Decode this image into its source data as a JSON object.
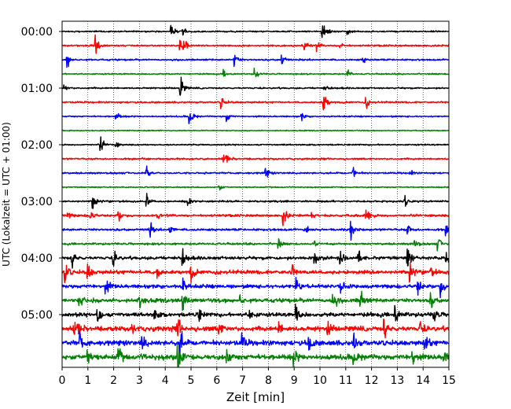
{
  "chart_data": {
    "type": "line",
    "xlabel": "Zeit  [min]",
    "ylabel": "UTC (Lokalzeit = UTC + 01:00)",
    "xlim": [
      0,
      15
    ],
    "x_ticks": [
      "0",
      "1",
      "2",
      "3",
      "4",
      "5",
      "6",
      "7",
      "8",
      "9",
      "10",
      "11",
      "12",
      "13",
      "14",
      "15"
    ],
    "y_ticks": [
      "00:00",
      "01:00",
      "02:00",
      "03:00",
      "04:00",
      "05:00"
    ],
    "grid": "vertical dotted",
    "colors": [
      "#000000",
      "#ff0000",
      "#0000ff",
      "#008000"
    ],
    "rows": [
      {
        "amp": 1.0,
        "events": [
          [
            4.25,
            10
          ],
          [
            4.7,
            6
          ],
          [
            10.1,
            12
          ],
          [
            10.3,
            5
          ],
          [
            11.1,
            8
          ]
        ]
      },
      {
        "amp": 1.2,
        "events": [
          [
            1.3,
            12
          ],
          [
            4.6,
            14
          ],
          [
            4.75,
            8
          ],
          [
            9.4,
            10
          ],
          [
            9.9,
            6
          ],
          [
            10.8,
            5
          ]
        ]
      },
      {
        "amp": 1.2,
        "events": [
          [
            0.2,
            16
          ],
          [
            6.7,
            12
          ],
          [
            8.5,
            14
          ],
          [
            11.7,
            4
          ]
        ]
      },
      {
        "amp": 0.9,
        "events": [
          [
            6.3,
            5
          ],
          [
            7.5,
            8
          ],
          [
            11.1,
            5
          ]
        ]
      },
      {
        "amp": 1.1,
        "events": [
          [
            0.1,
            6
          ],
          [
            4.6,
            18
          ],
          [
            10.2,
            4
          ]
        ]
      },
      {
        "amp": 1.2,
        "events": [
          [
            6.2,
            8
          ],
          [
            10.15,
            20
          ],
          [
            11.8,
            8
          ]
        ]
      },
      {
        "amp": 1.0,
        "events": [
          [
            2.1,
            8
          ],
          [
            4.95,
            18
          ],
          [
            6.4,
            8
          ],
          [
            9.3,
            5
          ]
        ]
      },
      {
        "amp": 0.7,
        "events": []
      },
      {
        "amp": 1.0,
        "events": [
          [
            1.5,
            12
          ],
          [
            2.1,
            4
          ]
        ]
      },
      {
        "amp": 1.2,
        "events": [
          [
            6.3,
            10
          ]
        ]
      },
      {
        "amp": 1.2,
        "events": [
          [
            3.3,
            10
          ],
          [
            7.9,
            8
          ],
          [
            11.3,
            10
          ],
          [
            13.5,
            4
          ]
        ]
      },
      {
        "amp": 0.8,
        "events": [
          [
            6.1,
            5
          ]
        ]
      },
      {
        "amp": 1.3,
        "events": [
          [
            1.2,
            14
          ],
          [
            3.3,
            10
          ],
          [
            4.9,
            6
          ],
          [
            13.3,
            10
          ]
        ]
      },
      {
        "amp": 1.6,
        "events": [
          [
            0.2,
            8
          ],
          [
            1.1,
            10
          ],
          [
            2.2,
            8
          ],
          [
            3.7,
            6
          ],
          [
            8.6,
            14
          ],
          [
            9.7,
            8
          ],
          [
            11.8,
            14
          ]
        ]
      },
      {
        "amp": 1.6,
        "events": [
          [
            3.4,
            12
          ],
          [
            4.2,
            8
          ],
          [
            9.5,
            10
          ],
          [
            11.2,
            14
          ],
          [
            13.4,
            8
          ],
          [
            14.9,
            8
          ]
        ]
      },
      {
        "amp": 1.4,
        "events": [
          [
            8.4,
            8
          ],
          [
            9.8,
            6
          ],
          [
            13.7,
            8
          ],
          [
            14.6,
            8
          ]
        ]
      },
      {
        "amp": 2.2,
        "events": [
          [
            0.4,
            14
          ],
          [
            2.0,
            14
          ],
          [
            4.7,
            10
          ],
          [
            9.8,
            10
          ],
          [
            10.8,
            10
          ],
          [
            11.5,
            10
          ],
          [
            13.4,
            18
          ],
          [
            14.9,
            12
          ]
        ]
      },
      {
        "amp": 2.6,
        "events": [
          [
            0.1,
            20
          ],
          [
            1.0,
            14
          ],
          [
            3.7,
            12
          ],
          [
            5.0,
            12
          ],
          [
            8.9,
            12
          ],
          [
            13.5,
            16
          ],
          [
            14.3,
            8
          ]
        ]
      },
      {
        "amp": 2.6,
        "events": [
          [
            1.7,
            12
          ],
          [
            4.7,
            12
          ],
          [
            9.1,
            12
          ],
          [
            10.8,
            10
          ],
          [
            13.8,
            14
          ],
          [
            14.7,
            12
          ]
        ]
      },
      {
        "amp": 2.8,
        "events": [
          [
            0.7,
            12
          ],
          [
            3.0,
            12
          ],
          [
            4.7,
            14
          ],
          [
            6.9,
            10
          ],
          [
            10.5,
            18
          ],
          [
            11.6,
            14
          ],
          [
            14.3,
            12
          ]
        ]
      },
      {
        "amp": 2.8,
        "events": [
          [
            1.4,
            16
          ],
          [
            3.6,
            10
          ],
          [
            5.3,
            12
          ],
          [
            7.3,
            12
          ],
          [
            9.1,
            14
          ],
          [
            12.9,
            18
          ],
          [
            14.4,
            14
          ]
        ]
      },
      {
        "amp": 3.4,
        "events": [
          [
            0.5,
            16
          ],
          [
            2.7,
            12
          ],
          [
            4.5,
            14
          ],
          [
            6.1,
            10
          ],
          [
            8.4,
            14
          ],
          [
            10.3,
            12
          ],
          [
            12.5,
            16
          ],
          [
            13.9,
            12
          ]
        ]
      },
      {
        "amp": 3.4,
        "events": [
          [
            0.7,
            16
          ],
          [
            3.1,
            14
          ],
          [
            4.6,
            22
          ],
          [
            7.0,
            12
          ],
          [
            9.6,
            14
          ],
          [
            11.3,
            14
          ],
          [
            14.1,
            12
          ]
        ]
      },
      {
        "amp": 3.6,
        "events": [
          [
            1.0,
            14
          ],
          [
            2.2,
            12
          ],
          [
            4.5,
            22
          ],
          [
            6.4,
            14
          ],
          [
            9.0,
            12
          ],
          [
            11.3,
            16
          ],
          [
            13.6,
            14
          ],
          [
            14.8,
            12
          ]
        ]
      }
    ]
  }
}
